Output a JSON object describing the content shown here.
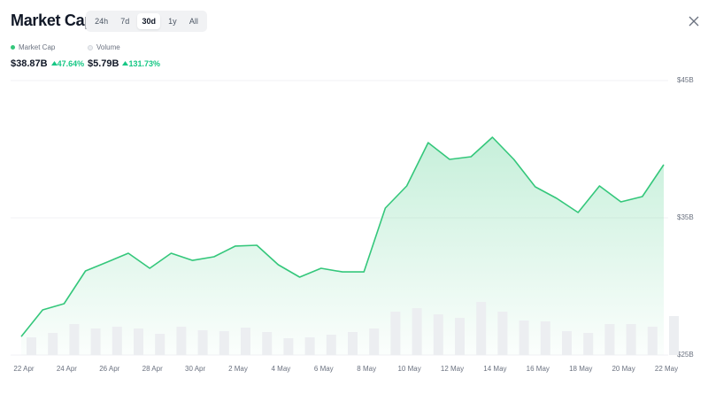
{
  "header": {
    "title": "Market Cap",
    "ranges": [
      "24h",
      "7d",
      "30d",
      "1y",
      "All"
    ],
    "selected_range": 2
  },
  "chart_data": {
    "type": "line",
    "categories": [
      "22 Apr",
      null,
      "24 Apr",
      null,
      "26 Apr",
      null,
      "28 Apr",
      null,
      "30 Apr",
      null,
      "2 May",
      null,
      "4 May",
      null,
      "6 May",
      null,
      "8 May",
      null,
      "10 May",
      null,
      "12 May",
      null,
      "14 May",
      null,
      "16 May",
      null,
      "18 May",
      null,
      "20 May",
      null,
      "22 May"
    ],
    "series": [
      {
        "name": "Market Cap",
        "color": "#34c77b",
        "summary": "$38.87B",
        "change": "47.64%",
        "values": [
          26.35,
          28.29,
          28.74,
          31.13,
          31.77,
          32.42,
          31.32,
          32.42,
          31.9,
          32.16,
          32.94,
          33.0,
          31.58,
          30.68,
          31.32,
          31.06,
          31.06,
          35.71,
          37.32,
          40.48,
          39.26,
          39.45,
          40.87,
          39.26,
          37.26,
          36.42,
          35.39,
          37.32,
          36.16,
          36.55,
          38.87
        ]
      },
      {
        "name": "Volume",
        "color": "#eceef1",
        "type": "bar",
        "summary": "$5.79B",
        "change": "131.73%",
        "values": [
          2.63,
          3.29,
          4.61,
          3.95,
          4.21,
          3.95,
          3.16,
          4.21,
          3.69,
          3.55,
          4.08,
          3.42,
          2.5,
          2.63,
          3.03,
          3.42,
          3.95,
          6.45,
          6.97,
          6.05,
          5.53,
          7.9,
          6.45,
          5.13,
          5.0,
          3.55,
          3.29,
          4.61,
          4.61,
          4.21,
          5.79
        ]
      }
    ],
    "ylim": [
      25,
      45
    ],
    "yticks": [
      {
        "value": 25,
        "label": "$25B"
      },
      {
        "value": 35,
        "label": "$35B"
      },
      {
        "value": 45,
        "label": "$45B"
      }
    ],
    "grid": true
  }
}
